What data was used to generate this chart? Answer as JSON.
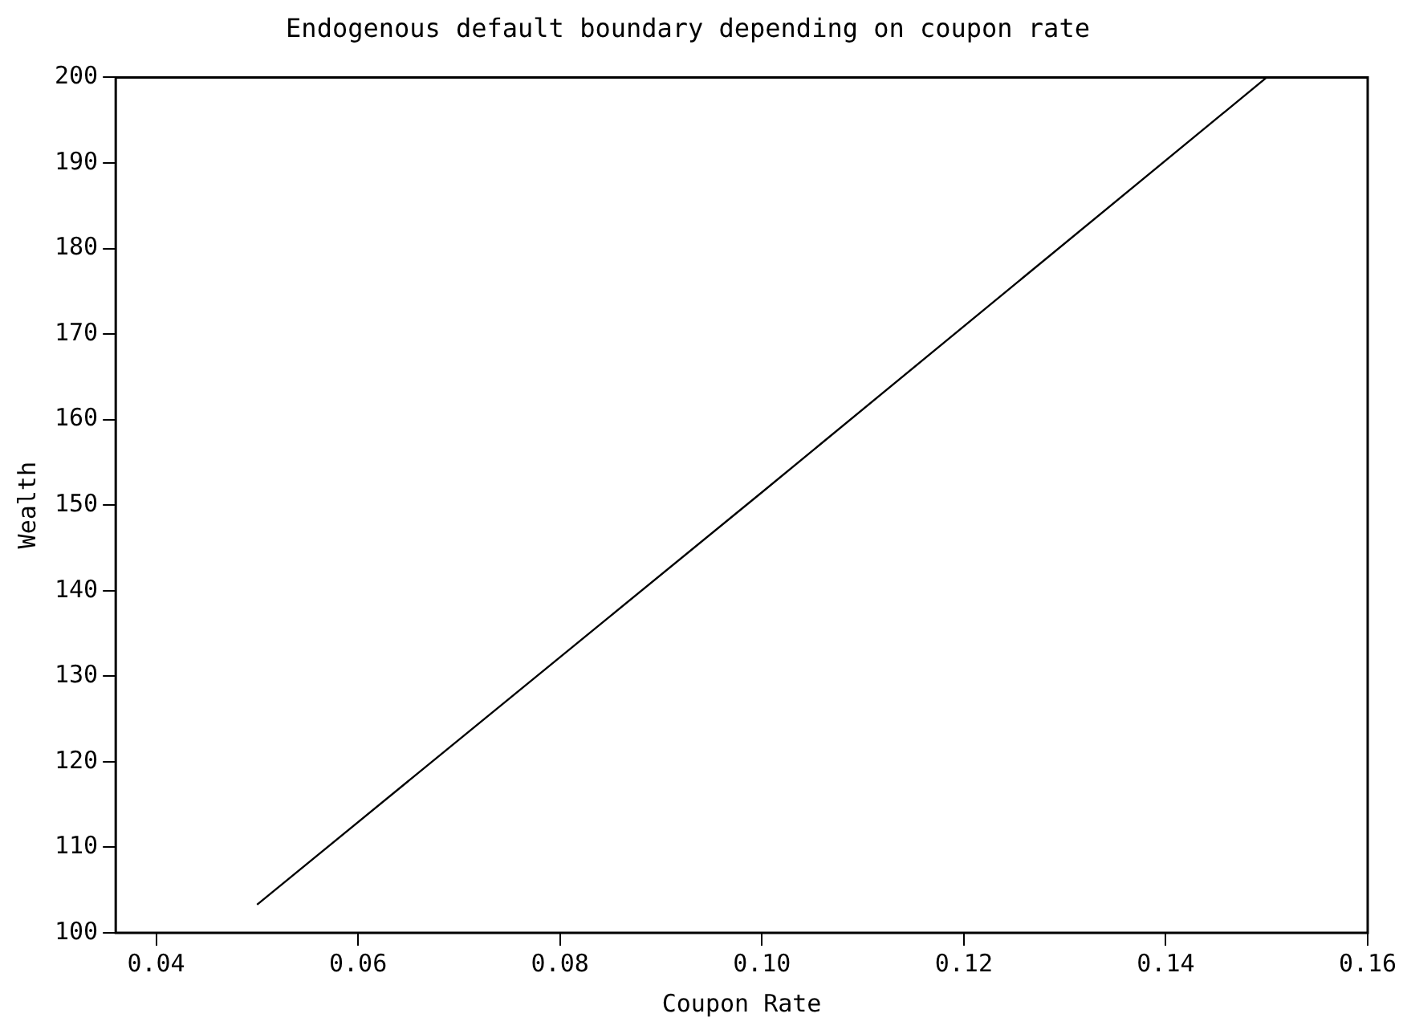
{
  "chart_data": {
    "type": "line",
    "title": "Endogenous default boundary depending on coupon rate",
    "xlabel": "Coupon Rate",
    "ylabel": "Wealth",
    "x": [
      0.05,
      0.1,
      0.15
    ],
    "series": [
      {
        "color": "#000000",
        "values": [
          103.3,
          151.5,
          200
        ]
      }
    ],
    "xlim": [
      0.036,
      0.16
    ],
    "xticks": [
      {
        "value": 0.04,
        "label": "0.04"
      },
      {
        "value": 0.06,
        "label": "0.06"
      },
      {
        "value": 0.08,
        "label": "0.08"
      },
      {
        "value": 0.1,
        "label": "0.10"
      },
      {
        "value": 0.12,
        "label": "0.12"
      },
      {
        "value": 0.14,
        "label": "0.14"
      },
      {
        "value": 0.16,
        "label": "0.16"
      }
    ],
    "ylim": [
      100,
      200
    ],
    "yticks": [
      100,
      110,
      120,
      130,
      140,
      150,
      160,
      170,
      180,
      190,
      200
    ],
    "grid": false,
    "legend": false,
    "marker": "none",
    "line_style": "solid"
  }
}
